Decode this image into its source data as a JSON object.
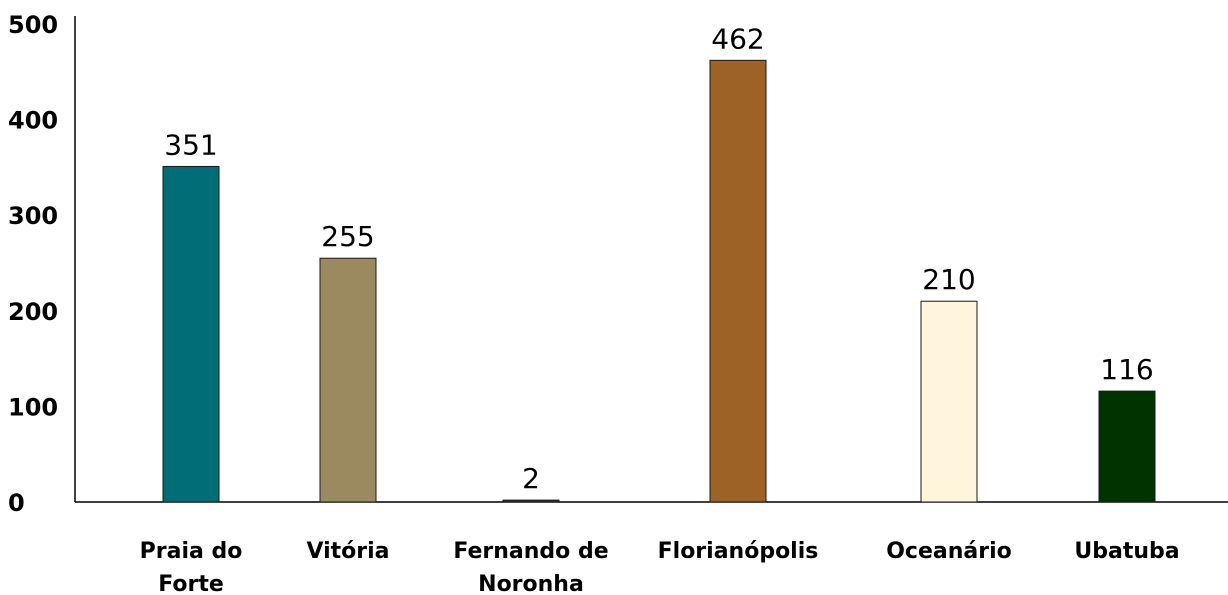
{
  "chart_data": {
    "type": "bar",
    "title": "",
    "xlabel": "",
    "ylabel": "",
    "ylim": [
      0,
      500
    ],
    "yticks": [
      "0",
      "100",
      "200",
      "300",
      "400",
      "500"
    ],
    "categories": [
      [
        "Praia do",
        "Forte"
      ],
      [
        "Vitória"
      ],
      [
        "Fernando de",
        "Noronha"
      ],
      [
        "Florianópolis"
      ],
      [
        "Oceanário"
      ],
      [
        "Ubatuba"
      ]
    ],
    "values": [
      351,
      255,
      2,
      462,
      210,
      116
    ],
    "colors": [
      "#006d77",
      "#9b8a60",
      "#333333",
      "#9c6226",
      "#fff4dc",
      "#003300"
    ],
    "grid": false,
    "legend": "none"
  }
}
